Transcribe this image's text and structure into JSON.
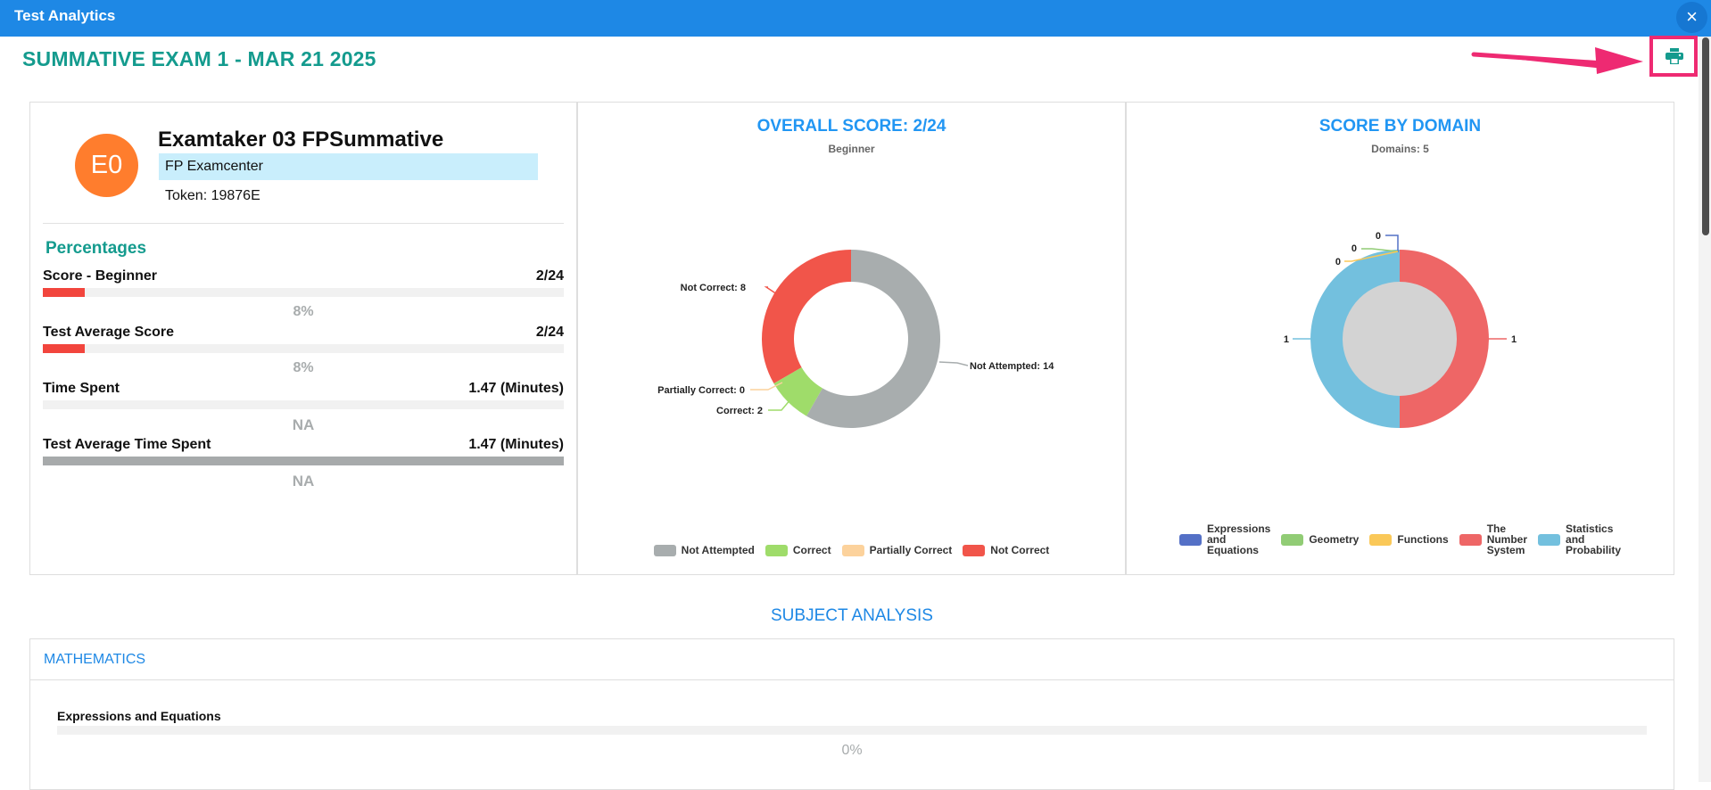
{
  "window": {
    "title": "Test Analytics",
    "close_label": "×"
  },
  "exam": {
    "title": "SUMMATIVE EXAM 1 - MAR 21 2025"
  },
  "student": {
    "initials": "E0",
    "name": "Examtaker 03 FPSummative",
    "center": "FP Examcenter",
    "token": "Token: 19876E"
  },
  "percentages": {
    "heading": "Percentages",
    "metrics": [
      {
        "label": "Score - Beginner",
        "value": "2/24",
        "percent_text": "8%",
        "fill_percent": 8
      },
      {
        "label": "Test Average Score",
        "value": "2/24",
        "percent_text": "8%",
        "fill_percent": 8
      },
      {
        "label": "Time Spent",
        "value": "1.47 (Minutes)",
        "percent_text": "NA",
        "fill_percent": 0
      },
      {
        "label": "Test Average Time Spent",
        "value": "1.47 (Minutes)",
        "percent_text": "NA",
        "fill_percent": 100
      }
    ]
  },
  "overall_chart": {
    "title": "OVERALL SCORE: 2/24",
    "subtitle": "Beginner",
    "labels": {
      "not_correct": "Not Correct: 8",
      "not_attempted": "Not Attempted: 14",
      "partially_correct": "Partially Correct: 0",
      "correct": "Correct: 2"
    },
    "legend": [
      "Not Attempted",
      "Correct",
      "Partially Correct",
      "Not Correct"
    ]
  },
  "domain_chart": {
    "title": "SCORE BY DOMAIN",
    "subtitle": "Domains: 5",
    "labels": {
      "expr": "0",
      "geometry": "0",
      "functions": "0",
      "stats": "1",
      "number": "1"
    },
    "legend": [
      [
        "Expressions",
        "and",
        "Equations"
      ],
      [
        "Geometry"
      ],
      [
        "Functions"
      ],
      [
        "The",
        "Number",
        "System"
      ],
      [
        "Statistics",
        "and",
        "Probability"
      ]
    ]
  },
  "chart_data": [
    {
      "type": "pie",
      "title": "OVERALL SCORE: 2/24",
      "subtitle": "Beginner",
      "categories": [
        "Not Attempted",
        "Correct",
        "Partially Correct",
        "Not Correct"
      ],
      "values": [
        14,
        2,
        0,
        8
      ],
      "colors": [
        "#a8adae",
        "#9fdc6a",
        "#fcd29c",
        "#f1554a"
      ],
      "legend": "bottom"
    },
    {
      "type": "pie",
      "title": "SCORE BY DOMAIN",
      "subtitle": "Domains: 5",
      "categories": [
        "Expressions and Equations",
        "Geometry",
        "Functions",
        "The Number System",
        "Statistics and Probability"
      ],
      "values": [
        0,
        0,
        0,
        1,
        1
      ],
      "colors": [
        "#5470c6",
        "#91cc75",
        "#fac858",
        "#ee6666",
        "#73c0de"
      ],
      "legend": "bottom"
    }
  ],
  "subject": {
    "heading": "SUBJECT ANALYSIS",
    "name": "MATHEMATICS",
    "domains": [
      {
        "label": "Expressions and Equations",
        "percent_text": "0%",
        "fill_percent": 0
      }
    ]
  }
}
